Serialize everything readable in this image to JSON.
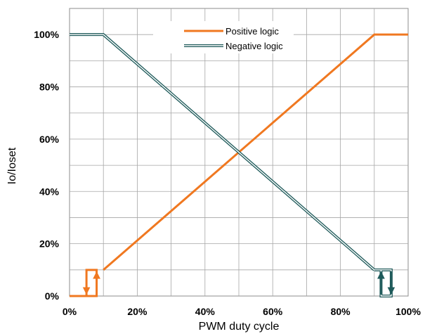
{
  "chart_data": {
    "type": "line",
    "title": "",
    "xlabel": "PWM duty cycle",
    "ylabel": "Io/Ioset",
    "xlim": [
      0,
      100
    ],
    "ylim": [
      0,
      100
    ],
    "ymax_grid": 110,
    "grid": true,
    "legend_position": "top-right",
    "x_ticks": [
      {
        "value": 0,
        "label": "0%"
      },
      {
        "value": 20,
        "label": "20%"
      },
      {
        "value": 40,
        "label": "40%"
      },
      {
        "value": 60,
        "label": "60%"
      },
      {
        "value": 80,
        "label": "80%"
      },
      {
        "value": 100,
        "label": "100%"
      }
    ],
    "y_ticks": [
      {
        "value": 0,
        "label": "0%"
      },
      {
        "value": 20,
        "label": "20%"
      },
      {
        "value": 40,
        "label": "40%"
      },
      {
        "value": 60,
        "label": "60%"
      },
      {
        "value": 80,
        "label": "80%"
      },
      {
        "value": 100,
        "label": "100%"
      }
    ],
    "series": [
      {
        "name": "Positive logic",
        "color": "#f07820",
        "style": "solid",
        "points": [
          [
            10,
            10
          ],
          [
            90,
            100
          ],
          [
            100,
            100
          ]
        ],
        "hysteresis": [
          [
            0,
            0
          ],
          [
            8,
            0
          ],
          [
            8,
            10
          ],
          [
            5,
            10
          ],
          [
            5,
            0
          ]
        ],
        "arrows": [
          {
            "x": 5,
            "direction": "down"
          },
          {
            "x": 8,
            "direction": "up"
          }
        ]
      },
      {
        "name": "Negative logic",
        "color": "#1e5a5a",
        "style": "double",
        "points": [
          [
            0,
            100
          ],
          [
            10,
            100
          ],
          [
            90,
            10
          ]
        ],
        "hysteresis": [
          [
            90,
            10
          ],
          [
            95,
            10
          ],
          [
            95,
            0
          ],
          [
            92,
            0
          ],
          [
            92,
            10
          ]
        ],
        "arrows": [
          {
            "x": 92,
            "direction": "up"
          },
          {
            "x": 95,
            "direction": "down"
          }
        ]
      }
    ]
  }
}
